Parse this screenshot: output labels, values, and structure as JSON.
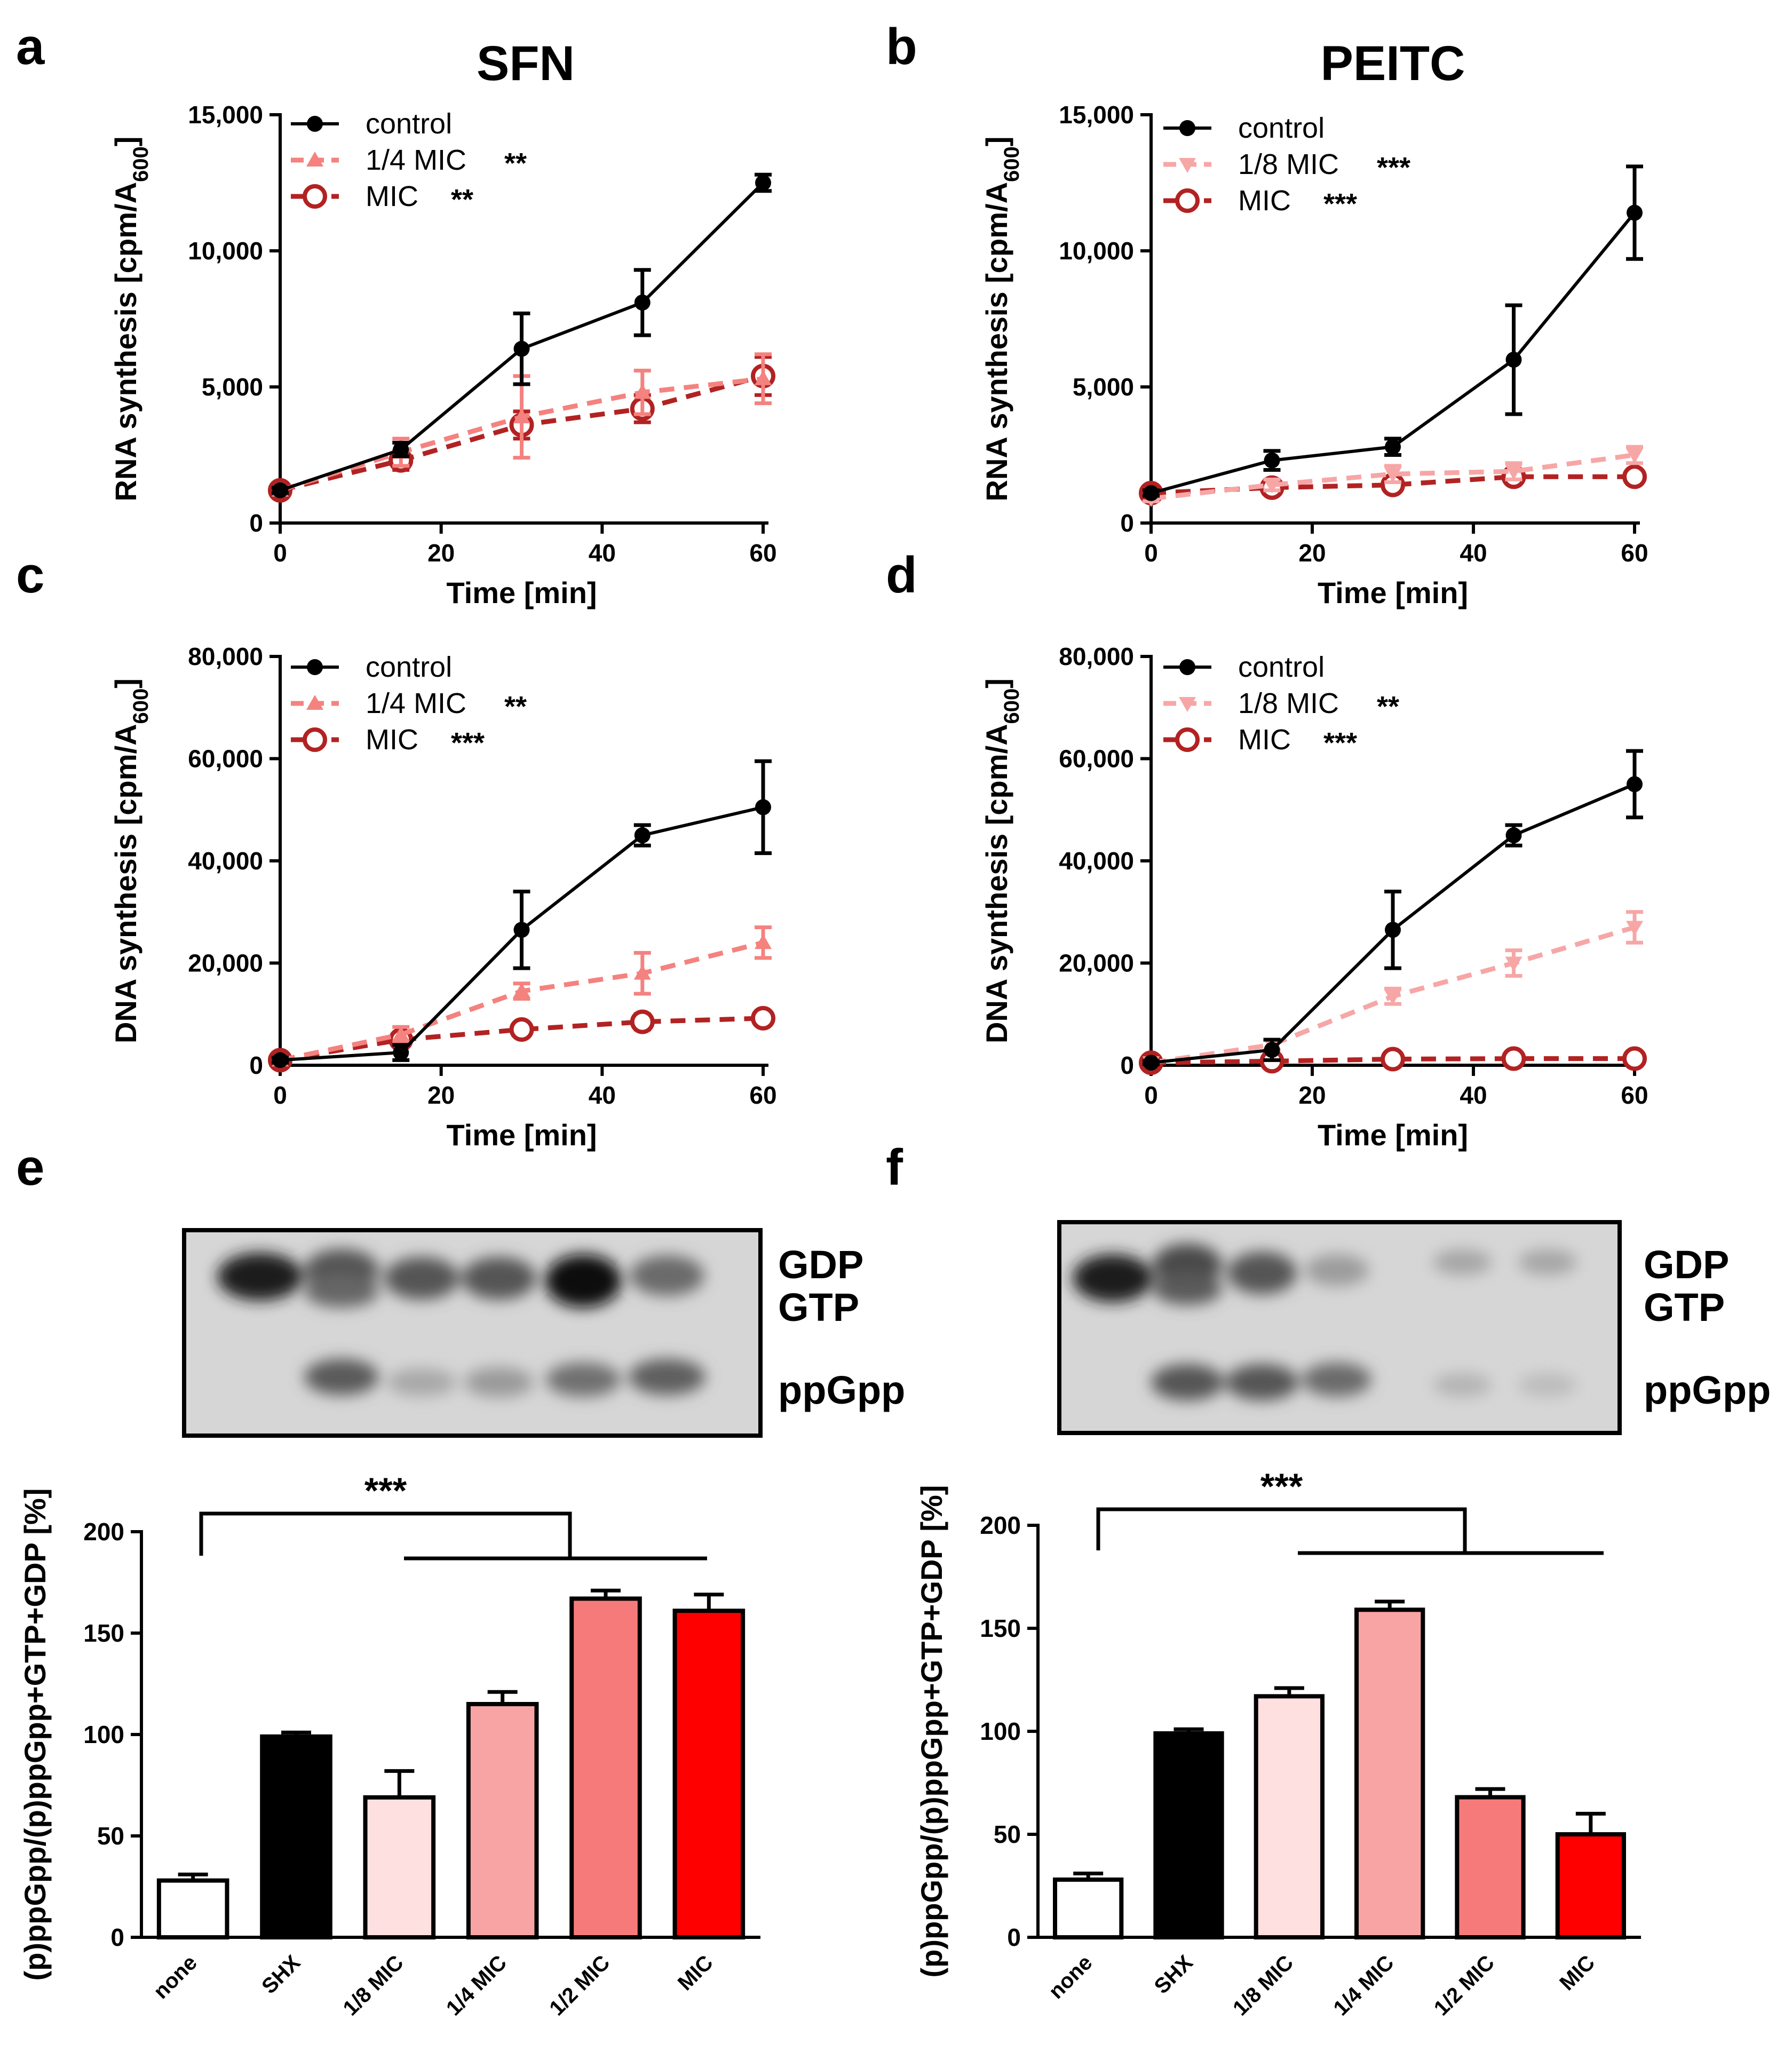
{
  "colors": {
    "control": "#000000",
    "quarter": "#f4827f",
    "eighth": "#f7a6a6",
    "mic": "#b22222",
    "bars": [
      "#ffffff",
      "#000000",
      "#ffe0e0",
      "#f9a4a4",
      "#f77a7a",
      "#ff0000"
    ]
  },
  "chart_data": [
    {
      "id": "a",
      "panel": "a",
      "title": "SFN",
      "type": "line",
      "xlabel": "Time [min]",
      "ylabel_main": "RNA synthesis [cpm/A",
      "ylabel_sub": "600",
      "ylabel_end": "]",
      "xlim": [
        0,
        60
      ],
      "ylim": [
        0,
        15000
      ],
      "xticks": [
        0,
        20,
        40,
        60
      ],
      "xtick_labels": [
        "0",
        "20",
        "40",
        "60"
      ],
      "yticks": [
        0,
        5000,
        10000,
        15000
      ],
      "ytick_labels": [
        "0",
        "5,000",
        "10,000",
        "15,000"
      ],
      "x": [
        0,
        15,
        30,
        45,
        60
      ],
      "series": [
        {
          "name": "control",
          "sig": "",
          "style": "control",
          "values": [
            1200,
            2700,
            6400,
            8100,
            12500
          ],
          "errors": [
            100,
            250,
            1300,
            1200,
            300
          ]
        },
        {
          "name": "1/4 MIC",
          "sig": "**",
          "style": "quarter",
          "values": [
            1200,
            2600,
            3900,
            4800,
            5300
          ],
          "errors": [
            100,
            500,
            1500,
            800,
            900
          ]
        },
        {
          "name": "MIC",
          "sig": "**",
          "style": "mic",
          "values": [
            1200,
            2300,
            3600,
            4200,
            5400
          ],
          "errors": [
            100,
            350,
            500,
            500,
            700
          ]
        }
      ]
    },
    {
      "id": "b",
      "panel": "b",
      "title": "PEITC",
      "type": "line",
      "xlabel": "Time [min]",
      "ylabel_main": "RNA synthesis [cpm/A",
      "ylabel_sub": "600",
      "ylabel_end": "]",
      "xlim": [
        0,
        60
      ],
      "ylim": [
        0,
        15000
      ],
      "xticks": [
        0,
        20,
        40,
        60
      ],
      "xtick_labels": [
        "0",
        "20",
        "40",
        "60"
      ],
      "yticks": [
        0,
        5000,
        10000,
        15000
      ],
      "ytick_labels": [
        "0",
        "5,000",
        "10,000",
        "15,000"
      ],
      "x": [
        0,
        15,
        30,
        45,
        60
      ],
      "series": [
        {
          "name": "control",
          "sig": "",
          "style": "control",
          "values": [
            1100,
            2300,
            2800,
            6000,
            11400
          ],
          "errors": [
            100,
            350,
            300,
            2000,
            1700
          ]
        },
        {
          "name": "1/8 MIC",
          "sig": "***",
          "style": "eighth",
          "values": [
            900,
            1400,
            1800,
            1900,
            2500
          ],
          "errors": [
            100,
            200,
            300,
            300,
            300
          ]
        },
        {
          "name": "MIC",
          "sig": "***",
          "style": "mic",
          "values": [
            1100,
            1300,
            1400,
            1700,
            1700
          ],
          "errors": [
            100,
            150,
            150,
            200,
            150
          ]
        }
      ]
    },
    {
      "id": "c",
      "panel": "c",
      "title": "",
      "type": "line",
      "xlabel": "Time [min]",
      "ylabel_main": "DNA synthesis [cpm/A",
      "ylabel_sub": "600",
      "ylabel_end": "]",
      "xlim": [
        0,
        60
      ],
      "ylim": [
        0,
        80000
      ],
      "xticks": [
        0,
        20,
        40,
        60
      ],
      "xtick_labels": [
        "0",
        "20",
        "40",
        "60"
      ],
      "yticks": [
        0,
        20000,
        40000,
        60000,
        80000
      ],
      "ytick_labels": [
        "0",
        "20,000",
        "40,000",
        "60,000",
        "80,000"
      ],
      "x": [
        0,
        15,
        30,
        45,
        60
      ],
      "series": [
        {
          "name": "control",
          "sig": "",
          "style": "control",
          "values": [
            1000,
            2500,
            26500,
            45000,
            50500
          ],
          "errors": [
            500,
            1500,
            7500,
            2000,
            9000
          ]
        },
        {
          "name": "1/4 MIC",
          "sig": "**",
          "style": "quarter",
          "values": [
            1000,
            6000,
            14500,
            18000,
            24000
          ],
          "errors": [
            500,
            1500,
            1500,
            4000,
            3000
          ]
        },
        {
          "name": "MIC",
          "sig": "***",
          "style": "mic",
          "values": [
            1000,
            5000,
            7000,
            8500,
            9200
          ],
          "errors": [
            500,
            1000,
            800,
            1500,
            1000
          ]
        }
      ]
    },
    {
      "id": "d",
      "panel": "d",
      "title": "",
      "type": "line",
      "xlabel": "Time [min]",
      "ylabel_main": "DNA synthesis [cpm/A",
      "ylabel_sub": "600",
      "ylabel_end": "]",
      "xlim": [
        0,
        60
      ],
      "ylim": [
        0,
        80000
      ],
      "xticks": [
        0,
        20,
        40,
        60
      ],
      "xtick_labels": [
        "0",
        "20",
        "40",
        "60"
      ],
      "yticks": [
        0,
        20000,
        40000,
        60000,
        80000
      ],
      "ytick_labels": [
        "0",
        "20,000",
        "40,000",
        "60,000",
        "80,000"
      ],
      "x": [
        0,
        15,
        30,
        45,
        60
      ],
      "series": [
        {
          "name": "control",
          "sig": "",
          "style": "control",
          "values": [
            500,
            3000,
            26500,
            45000,
            55000
          ],
          "errors": [
            300,
            2000,
            7500,
            2000,
            6500
          ]
        },
        {
          "name": "1/8 MIC",
          "sig": "**",
          "style": "eighth",
          "values": [
            500,
            4000,
            13500,
            20000,
            27000
          ],
          "errors": [
            300,
            1000,
            1500,
            2500,
            3000
          ]
        },
        {
          "name": "MIC",
          "sig": "***",
          "style": "mic",
          "values": [
            500,
            800,
            1200,
            1300,
            1300
          ],
          "errors": [
            200,
            300,
            300,
            300,
            300
          ]
        }
      ]
    },
    {
      "id": "e",
      "panel": "e",
      "title": "",
      "type": "bar",
      "ylabel": "(p)ppGpp/(p)ppGpp+GTP+GDP [%]",
      "ylim": [
        0,
        200
      ],
      "yticks": [
        0,
        50,
        100,
        150,
        200
      ],
      "ytick_labels": [
        "0",
        "50",
        "100",
        "150",
        "200"
      ],
      "categories": [
        "none",
        "SHX",
        "1/8 MIC",
        "1/4 MIC",
        "1/2 MIC",
        "MIC"
      ],
      "values": [
        28,
        99,
        69,
        115,
        167,
        161
      ],
      "errors": [
        3,
        2,
        13,
        6,
        4,
        8
      ],
      "significance": "***",
      "gel_labels": [
        "GDP",
        "GTP",
        "ppGpp"
      ]
    },
    {
      "id": "f",
      "panel": "f",
      "title": "",
      "type": "bar",
      "ylabel": "(p)ppGpp/(p)ppGpp+GTP+GDP [%]",
      "ylim": [
        0,
        200
      ],
      "yticks": [
        0,
        50,
        100,
        150,
        200
      ],
      "ytick_labels": [
        "0",
        "50",
        "100",
        "150",
        "200"
      ],
      "categories": [
        "none",
        "SHX",
        "1/8 MIC",
        "1/4 MIC",
        "1/2 MIC",
        "MIC"
      ],
      "values": [
        28,
        99,
        117,
        159,
        68,
        50
      ],
      "errors": [
        3,
        2,
        4,
        4,
        4,
        10
      ],
      "significance": "***",
      "gel_labels": [
        "GDP",
        "GTP",
        "ppGpp"
      ]
    }
  ]
}
